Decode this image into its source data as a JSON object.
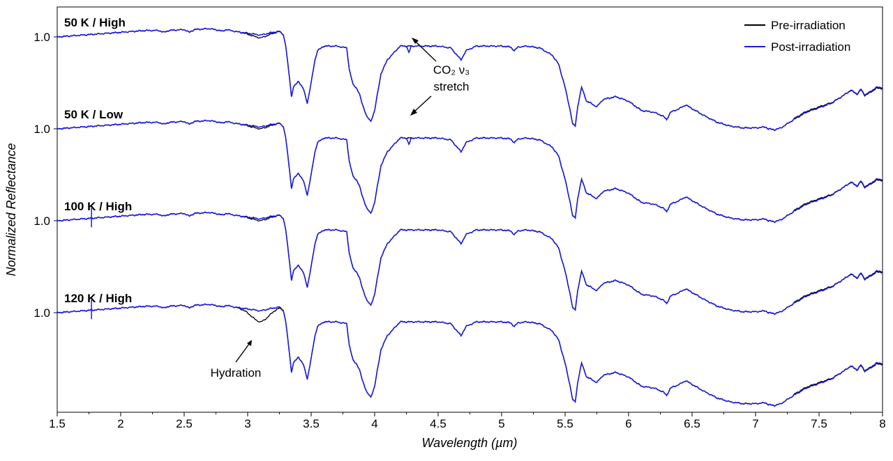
{
  "chart_data": {
    "type": "line",
    "xlabel": "Wavelength (µm)",
    "ylabel": "Normalized Reflectance",
    "xlim": [
      1.5,
      8.0
    ],
    "x_ticks": [
      "1.5",
      "2",
      "2.5",
      "3",
      "3.5",
      "4",
      "4.5",
      "5",
      "5.5",
      "6",
      "6.5",
      "7",
      "7.5",
      "8"
    ],
    "y_tick_label": "1.0",
    "legend": {
      "position": "top-right",
      "entries": [
        {
          "name": "Pre-irradiation",
          "color": "#000000"
        },
        {
          "name": "Post-irradiation",
          "color": "#1a1adb"
        }
      ]
    },
    "panels": [
      {
        "label": "50 K / High",
        "offset": 3.0,
        "hydration": 0.03,
        "co2": true
      },
      {
        "label": "50 K / Low",
        "offset": 2.0,
        "hydration": 0.02,
        "co2": true
      },
      {
        "label": "100 K / High",
        "offset": 1.0,
        "hydration": 0.02,
        "co2": false
      },
      {
        "label": "120 K / High",
        "offset": 0.0,
        "hydration": 0.12,
        "co2": false
      }
    ],
    "spectrum_x": [
      1.5,
      1.8,
      2.0,
      2.2,
      2.3,
      2.34,
      2.38,
      2.5,
      2.54,
      2.58,
      2.7,
      2.78,
      2.8,
      2.83,
      2.9,
      3.0,
      3.1,
      3.2,
      3.25,
      3.28,
      3.3,
      3.33,
      3.345,
      3.36,
      3.4,
      3.44,
      3.47,
      3.5,
      3.53,
      3.55,
      3.6,
      3.7,
      3.78,
      3.8,
      3.83,
      3.86,
      3.88,
      3.9,
      3.94,
      3.97,
      4.0,
      4.05,
      4.1,
      4.2,
      4.3,
      4.5,
      4.6,
      4.65,
      4.68,
      4.72,
      4.8,
      5.0,
      5.07,
      5.1,
      5.13,
      5.2,
      5.3,
      5.4,
      5.45,
      5.5,
      5.54,
      5.56,
      5.58,
      5.6,
      5.63,
      5.67,
      5.7,
      5.75,
      5.8,
      5.9,
      6.0,
      6.1,
      6.2,
      6.27,
      6.3,
      6.33,
      6.4,
      6.45,
      6.5,
      6.6,
      6.7,
      6.8,
      6.9,
      7.0,
      7.08,
      7.1,
      7.15,
      7.2,
      7.3,
      7.4,
      7.5,
      7.6,
      7.7,
      7.75,
      7.8,
      7.83,
      7.86,
      7.9,
      7.95,
      8.0
    ],
    "spectrum_y": [
      0.0,
      0.03,
      0.05,
      0.07,
      0.07,
      0.05,
      0.07,
      0.08,
      0.05,
      0.08,
      0.09,
      0.07,
      0.06,
      0.08,
      0.06,
      0.04,
      0.02,
      0.05,
      0.06,
      0.03,
      -0.1,
      -0.45,
      -0.65,
      -0.55,
      -0.48,
      -0.57,
      -0.72,
      -0.5,
      -0.25,
      -0.15,
      -0.1,
      -0.1,
      -0.12,
      -0.35,
      -0.52,
      -0.56,
      -0.62,
      -0.72,
      -0.87,
      -0.92,
      -0.8,
      -0.4,
      -0.25,
      -0.1,
      -0.1,
      -0.1,
      -0.12,
      -0.2,
      -0.25,
      -0.15,
      -0.1,
      -0.1,
      -0.11,
      -0.15,
      -0.11,
      -0.1,
      -0.12,
      -0.2,
      -0.3,
      -0.55,
      -0.8,
      -0.95,
      -0.97,
      -0.75,
      -0.55,
      -0.7,
      -0.72,
      -0.76,
      -0.68,
      -0.65,
      -0.7,
      -0.8,
      -0.82,
      -0.86,
      -0.9,
      -0.82,
      -0.78,
      -0.74,
      -0.78,
      -0.86,
      -0.93,
      -0.97,
      -0.99,
      -0.99,
      -0.98,
      -1.0,
      -1.01,
      -0.99,
      -0.9,
      -0.82,
      -0.77,
      -0.72,
      -0.63,
      -0.58,
      -0.62,
      -0.57,
      -0.63,
      -0.6,
      -0.55,
      -0.55
    ],
    "annotations": [
      {
        "text": "CO₂ ν₃",
        "line2": "stretch"
      },
      {
        "text": "Hydration"
      }
    ]
  }
}
